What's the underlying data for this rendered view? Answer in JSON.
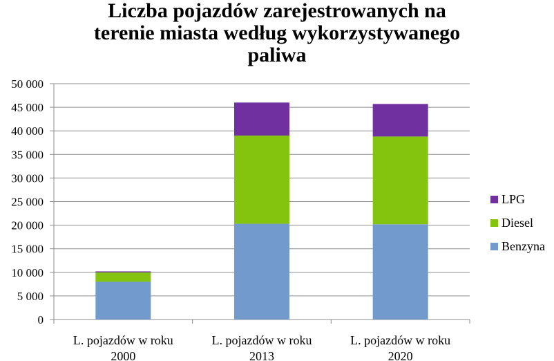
{
  "chart_data": {
    "type": "bar",
    "stacked": true,
    "title_lines": [
      "Liczba pojazdów zarejestrowanych na",
      "terenie miasta według wykorzystywanego",
      "paliwa"
    ],
    "categories": [
      [
        "L. pojazdów w roku",
        "2000"
      ],
      [
        "L. pojazdów w roku",
        "2013"
      ],
      [
        "L. pojazdów w roku",
        "2020"
      ]
    ],
    "series": [
      {
        "name": "Benzyna",
        "color": "#729ACD",
        "values": [
          8000,
          20300,
          20200
        ]
      },
      {
        "name": "Diesel",
        "color": "#84C40F",
        "values": [
          2000,
          18700,
          18600
        ]
      },
      {
        "name": "LPG",
        "color": "#7030A0",
        "values": [
          200,
          7000,
          6900
        ]
      }
    ],
    "ylim": [
      0,
      50000
    ],
    "yticks": [
      "0",
      "5 000",
      "10 000",
      "15 000",
      "20 000",
      "25 000",
      "30 000",
      "35 000",
      "40 000",
      "45 000",
      "50 000"
    ],
    "grid": true,
    "legend_position": "right"
  }
}
